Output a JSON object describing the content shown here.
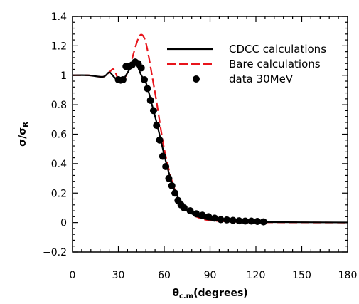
{
  "chart_data": {
    "type": "line",
    "xlabel": "θc.m(degrees)",
    "xlabel_main": "θ",
    "xlabel_sub": "c.m",
    "xlabel_rest": "(degrees)",
    "ylabel": "σ/σR",
    "ylabel_main": "σ/σ",
    "ylabel_sub": "R",
    "xlim": [
      0,
      180
    ],
    "ylim": [
      -0.2,
      1.4
    ],
    "x_ticks": [
      0,
      30,
      60,
      90,
      120,
      150,
      180
    ],
    "x_tick_labels": [
      "0",
      "30",
      "60",
      "90",
      "120",
      "150",
      "180"
    ],
    "y_ticks": [
      -0.2,
      0,
      0.2,
      0.4,
      0.6,
      0.8,
      1,
      1.2,
      1.4
    ],
    "y_tick_labels": [
      "−0.2",
      "0",
      "0.2",
      "0.4",
      "0.6",
      "0.8",
      "1",
      "1.2",
      "1.4"
    ],
    "grid": false,
    "legend_position": "top-right",
    "series": [
      {
        "name": "CDCC calculations",
        "style": "solid",
        "color": "#000000",
        "x": [
          0,
          10,
          20,
          24,
          27,
          30,
          32,
          35,
          38,
          41,
          43,
          45,
          48,
          50,
          52,
          55,
          58,
          60,
          63,
          66,
          69,
          72,
          75,
          80,
          85,
          90,
          95,
          100,
          110,
          120,
          130,
          150,
          180
        ],
        "y": [
          1.0,
          1.0,
          0.99,
          1.02,
          0.99,
          0.96,
          0.95,
          1.0,
          1.05,
          1.08,
          1.05,
          1.0,
          0.95,
          0.88,
          0.8,
          0.68,
          0.55,
          0.46,
          0.34,
          0.24,
          0.17,
          0.12,
          0.08,
          0.05,
          0.03,
          0.02,
          0.015,
          0.01,
          0.006,
          0.004,
          0.003,
          0.002,
          0.001
        ]
      },
      {
        "name": "Bare calculations",
        "style": "dashed",
        "color": "#e8141b",
        "x": [
          0,
          10,
          20,
          24,
          27,
          30,
          32,
          34,
          36,
          38,
          40,
          42,
          44,
          46,
          48,
          50,
          52,
          55,
          58,
          60,
          63,
          66,
          69,
          72,
          75,
          80,
          85,
          90,
          100,
          110,
          120,
          150,
          180
        ],
        "y": [
          1.0,
          1.0,
          0.99,
          1.02,
          1.04,
          0.97,
          0.96,
          0.98,
          1.02,
          1.08,
          1.15,
          1.22,
          1.27,
          1.27,
          1.22,
          1.12,
          1.0,
          0.82,
          0.62,
          0.5,
          0.36,
          0.25,
          0.17,
          0.12,
          0.08,
          0.045,
          0.025,
          0.015,
          0.008,
          0.004,
          0.002,
          0.001,
          0.0
        ]
      },
      {
        "name": "data 30MeV",
        "style": "markers",
        "color": "#000000",
        "x": [
          30,
          33,
          35,
          37,
          39,
          41,
          43,
          45,
          47,
          49,
          51,
          53,
          55,
          57,
          59,
          61,
          63,
          65,
          67,
          69,
          71,
          73,
          77,
          81,
          85,
          89,
          93,
          97,
          101,
          105,
          109,
          113,
          117,
          121,
          125
        ],
        "y": [
          0.97,
          0.97,
          1.06,
          1.06,
          1.07,
          1.09,
          1.08,
          1.05,
          0.97,
          0.91,
          0.83,
          0.76,
          0.66,
          0.56,
          0.45,
          0.38,
          0.3,
          0.25,
          0.2,
          0.15,
          0.12,
          0.1,
          0.08,
          0.06,
          0.05,
          0.04,
          0.03,
          0.02,
          0.018,
          0.015,
          0.012,
          0.01,
          0.01,
          0.008,
          0.005
        ]
      }
    ]
  }
}
